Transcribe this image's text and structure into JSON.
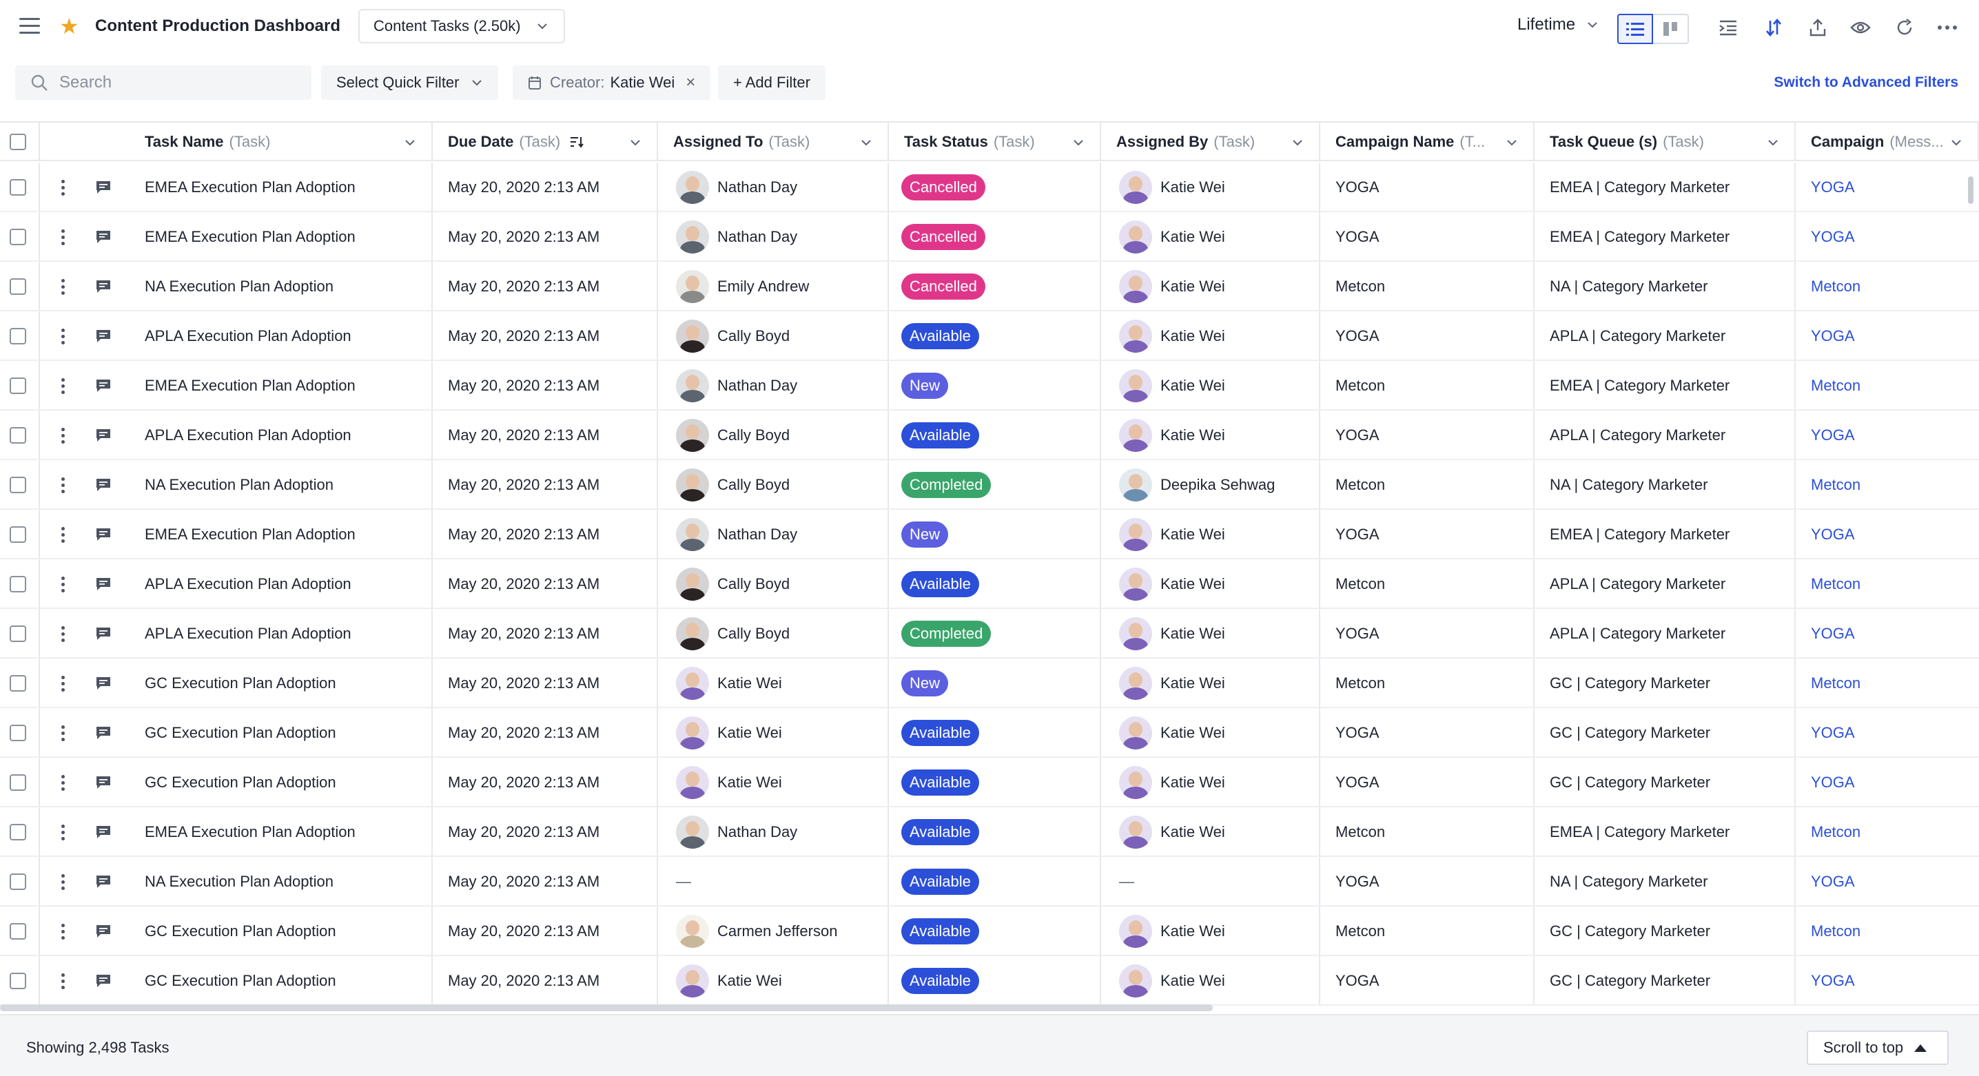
{
  "header": {
    "title": "Content Production Dashboard",
    "view_select": "Content Tasks (2.50k)",
    "date_range": "Lifetime"
  },
  "filters": {
    "search_placeholder": "Search",
    "quick_filter": "Select Quick Filter",
    "creator_label": "Creator:",
    "creator_value": "Katie Wei",
    "add_filter": "+ Add Filter",
    "advanced_link": "Switch to Advanced Filters"
  },
  "columns": [
    {
      "name": "Task Name",
      "sub": "(Task)"
    },
    {
      "name": "Due Date",
      "sub": "(Task)"
    },
    {
      "name": "Assigned To",
      "sub": "(Task)"
    },
    {
      "name": "Task Status",
      "sub": "(Task)"
    },
    {
      "name": "Assigned By",
      "sub": "(Task)"
    },
    {
      "name": "Campaign Name",
      "sub": "(T..."
    },
    {
      "name": "Task Queue (s)",
      "sub": "(Task)"
    },
    {
      "name": "Campaign",
      "sub": "(Mess..."
    }
  ],
  "status_colors": {
    "Cancelled": "#e0368a",
    "Available": "#2b4fd8",
    "New": "#5b5fe0",
    "Completed": "#3aa56b"
  },
  "people": {
    "Nathan Day": "#5c6470",
    "Emily Andrew": "#8a8a88",
    "Cally Boyd": "#2b2424",
    "Katie Wei": "#7b61b8",
    "Deepika Sehwag": "#6c8fb0",
    "Carmen Jefferson": "#c9b79a"
  },
  "rows": [
    {
      "task": "EMEA Execution Plan Adoption",
      "due": "May 20, 2020 2:13 AM",
      "assigned_to": "Nathan Day",
      "status": "Cancelled",
      "assigned_by": "Katie Wei",
      "campaign_name": "YOGA",
      "queue": "EMEA | Category Marketer",
      "campaign": "YOGA"
    },
    {
      "task": "EMEA Execution Plan Adoption",
      "due": "May 20, 2020 2:13 AM",
      "assigned_to": "Nathan Day",
      "status": "Cancelled",
      "assigned_by": "Katie Wei",
      "campaign_name": "YOGA",
      "queue": "EMEA | Category Marketer",
      "campaign": "YOGA"
    },
    {
      "task": "NA Execution Plan Adoption",
      "due": "May 20, 2020 2:13 AM",
      "assigned_to": "Emily Andrew",
      "status": "Cancelled",
      "assigned_by": "Katie Wei",
      "campaign_name": "Metcon",
      "queue": "NA | Category Marketer",
      "campaign": "Metcon"
    },
    {
      "task": "APLA Execution Plan Adoption",
      "due": "May 20, 2020 2:13 AM",
      "assigned_to": "Cally Boyd",
      "status": "Available",
      "assigned_by": "Katie Wei",
      "campaign_name": "YOGA",
      "queue": "APLA | Category Marketer",
      "campaign": "YOGA"
    },
    {
      "task": "EMEA Execution Plan Adoption",
      "due": "May 20, 2020 2:13 AM",
      "assigned_to": "Nathan Day",
      "status": "New",
      "assigned_by": "Katie Wei",
      "campaign_name": "Metcon",
      "queue": "EMEA | Category Marketer",
      "campaign": "Metcon"
    },
    {
      "task": "APLA Execution Plan Adoption",
      "due": "May 20, 2020 2:13 AM",
      "assigned_to": "Cally Boyd",
      "status": "Available",
      "assigned_by": "Katie Wei",
      "campaign_name": "YOGA",
      "queue": "APLA | Category Marketer",
      "campaign": "YOGA"
    },
    {
      "task": "NA Execution Plan Adoption",
      "due": "May 20, 2020 2:13 AM",
      "assigned_to": "Cally Boyd",
      "status": "Completed",
      "assigned_by": "Deepika Sehwag",
      "campaign_name": "Metcon",
      "queue": "NA | Category Marketer",
      "campaign": "Metcon"
    },
    {
      "task": "EMEA Execution Plan Adoption",
      "due": "May 20, 2020 2:13 AM",
      "assigned_to": "Nathan Day",
      "status": "New",
      "assigned_by": "Katie Wei",
      "campaign_name": "YOGA",
      "queue": "EMEA | Category Marketer",
      "campaign": "YOGA"
    },
    {
      "task": "APLA Execution Plan Adoption",
      "due": "May 20, 2020 2:13 AM",
      "assigned_to": "Cally Boyd",
      "status": "Available",
      "assigned_by": "Katie Wei",
      "campaign_name": "Metcon",
      "queue": "APLA | Category Marketer",
      "campaign": "Metcon"
    },
    {
      "task": "APLA Execution Plan Adoption",
      "due": "May 20, 2020 2:13 AM",
      "assigned_to": "Cally Boyd",
      "status": "Completed",
      "assigned_by": "Katie Wei",
      "campaign_name": "YOGA",
      "queue": "APLA | Category Marketer",
      "campaign": "YOGA"
    },
    {
      "task": "GC Execution Plan Adoption",
      "due": "May 20, 2020 2:13 AM",
      "assigned_to": "Katie Wei",
      "status": "New",
      "assigned_by": "Katie Wei",
      "campaign_name": "Metcon",
      "queue": "GC | Category Marketer",
      "campaign": "Metcon"
    },
    {
      "task": "GC Execution Plan Adoption",
      "due": "May 20, 2020 2:13 AM",
      "assigned_to": "Katie Wei",
      "status": "Available",
      "assigned_by": "Katie Wei",
      "campaign_name": "YOGA",
      "queue": "GC | Category Marketer",
      "campaign": "YOGA"
    },
    {
      "task": "GC Execution Plan Adoption",
      "due": "May 20, 2020 2:13 AM",
      "assigned_to": "Katie Wei",
      "status": "Available",
      "assigned_by": "Katie Wei",
      "campaign_name": "YOGA",
      "queue": "GC | Category Marketer",
      "campaign": "YOGA"
    },
    {
      "task": "EMEA Execution Plan Adoption",
      "due": "May 20, 2020 2:13 AM",
      "assigned_to": "Nathan Day",
      "status": "Available",
      "assigned_by": "Katie Wei",
      "campaign_name": "Metcon",
      "queue": "EMEA | Category Marketer",
      "campaign": "Metcon"
    },
    {
      "task": "NA Execution Plan Adoption",
      "due": "May 20, 2020 2:13 AM",
      "assigned_to": "—",
      "status": "Available",
      "assigned_by": "—",
      "campaign_name": "YOGA",
      "queue": "NA | Category Marketer",
      "campaign": "YOGA"
    },
    {
      "task": "GC Execution Plan Adoption",
      "due": "May 20, 2020 2:13 AM",
      "assigned_to": "Carmen Jefferson",
      "status": "Available",
      "assigned_by": "Katie Wei",
      "campaign_name": "Metcon",
      "queue": "GC | Category Marketer",
      "campaign": "Metcon"
    },
    {
      "task": "GC Execution Plan Adoption",
      "due": "May 20, 2020 2:13 AM",
      "assigned_to": "Katie Wei",
      "status": "Available",
      "assigned_by": "Katie Wei",
      "campaign_name": "YOGA",
      "queue": "GC | Category Marketer",
      "campaign": "YOGA"
    }
  ],
  "footer": {
    "count": "Showing 2,498 Tasks",
    "scroll_top": "Scroll to top"
  }
}
